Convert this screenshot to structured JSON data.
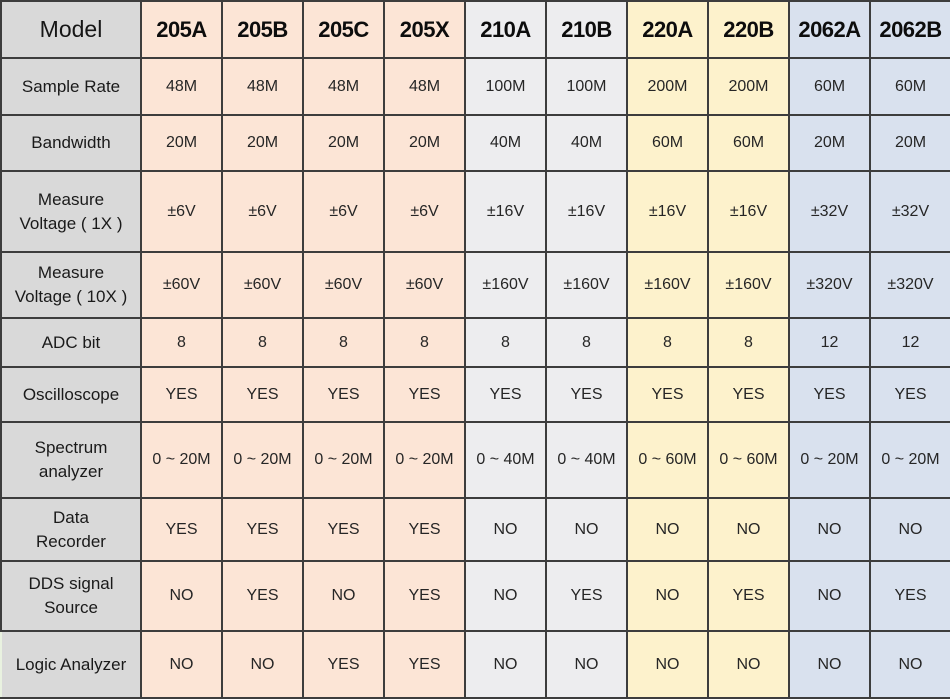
{
  "colors": {
    "label_column_bg": "#d9d9d9",
    "group_205_bg": "#fce5d6",
    "group_210_bg": "#ededef",
    "group_220_bg": "#fdf2cc",
    "group_2062_bg": "#d9e1ee",
    "grid_border": "#3d3d3d",
    "text": "#1c1c1c"
  },
  "table": {
    "header": {
      "label": "Model",
      "models": [
        {
          "name": "205A",
          "group": "peach"
        },
        {
          "name": "205B",
          "group": "peach"
        },
        {
          "name": "205C",
          "group": "peach"
        },
        {
          "name": "205X",
          "group": "peach"
        },
        {
          "name": "210A",
          "group": "gray"
        },
        {
          "name": "210B",
          "group": "gray"
        },
        {
          "name": "220A",
          "group": "yellow"
        },
        {
          "name": "220B",
          "group": "yellow"
        },
        {
          "name": "2062A",
          "group": "blue"
        },
        {
          "name": "2062B",
          "group": "blue"
        }
      ]
    },
    "rows": [
      {
        "label_lines": [
          "Sample Rate"
        ],
        "values": [
          "48M",
          "48M",
          "48M",
          "48M",
          "100M",
          "100M",
          "200M",
          "200M",
          "60M",
          "60M"
        ]
      },
      {
        "label_lines": [
          "Bandwidth"
        ],
        "values": [
          "20M",
          "20M",
          "20M",
          "20M",
          "40M",
          "40M",
          "60M",
          "60M",
          "20M",
          "20M"
        ]
      },
      {
        "label_lines": [
          "Measure",
          "Voltage ( 1X )"
        ],
        "values": [
          "±6V",
          "±6V",
          "±6V",
          "±6V",
          "±16V",
          "±16V",
          "±16V",
          "±16V",
          "±32V",
          "±32V"
        ]
      },
      {
        "label_lines": [
          "Measure",
          "Voltage ( 10X )"
        ],
        "values": [
          "±60V",
          "±60V",
          "±60V",
          "±60V",
          "±160V",
          "±160V",
          "±160V",
          "±160V",
          "±320V",
          "±320V"
        ]
      },
      {
        "label_lines": [
          "ADC bit"
        ],
        "values": [
          "8",
          "8",
          "8",
          "8",
          "8",
          "8",
          "8",
          "8",
          "12",
          "12"
        ]
      },
      {
        "label_lines": [
          "Oscilloscope"
        ],
        "values": [
          "YES",
          "YES",
          "YES",
          "YES",
          "YES",
          "YES",
          "YES",
          "YES",
          "YES",
          "YES"
        ]
      },
      {
        "label_lines": [
          "Spectrum",
          "analyzer"
        ],
        "values": [
          "0 ~ 20M",
          "0 ~ 20M",
          "0 ~ 20M",
          "0 ~ 20M",
          "0 ~ 40M",
          "0 ~ 40M",
          "0 ~ 60M",
          "0 ~ 60M",
          "0 ~ 20M",
          "0 ~ 20M"
        ]
      },
      {
        "label_lines": [
          "Data",
          "Recorder"
        ],
        "values": [
          "YES",
          "YES",
          "YES",
          "YES",
          "NO",
          "NO",
          "NO",
          "NO",
          "NO",
          "NO"
        ]
      },
      {
        "label_lines": [
          "DDS signal",
          "Source"
        ],
        "values": [
          "NO",
          "YES",
          "NO",
          "YES",
          "NO",
          "YES",
          "NO",
          "YES",
          "NO",
          "YES"
        ]
      },
      {
        "label_lines": [
          "Logic Analyzer"
        ],
        "values": [
          "NO",
          "NO",
          "YES",
          "YES",
          "NO",
          "NO",
          "NO",
          "NO",
          "NO",
          "NO"
        ]
      }
    ]
  }
}
